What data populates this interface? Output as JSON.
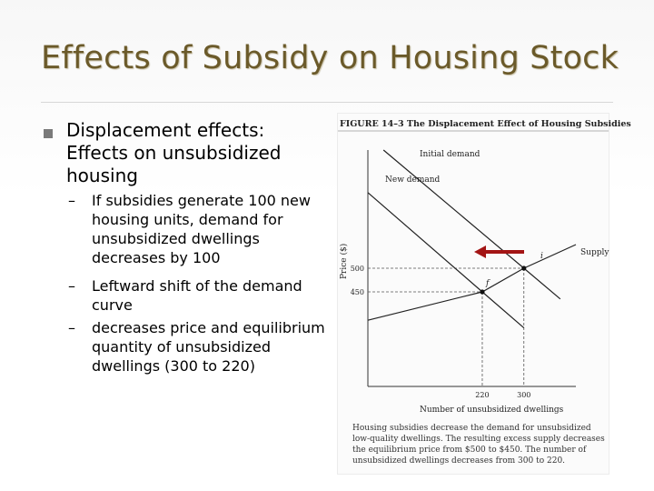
{
  "slide": {
    "title": "Effects of Subsidy on Housing Stock",
    "main_bullet": "Displacement effects: Effects on unsubsidized housing",
    "sub_bullets": [
      "If subsidies generate 100 new housing units, demand for unsubsidized dwellings decreases by 100",
      "Leftward shift of the demand curve",
      " decreases price and equilibrium quantity of unsubsidized dwellings (300 to 220)"
    ],
    "bullet_icon": "square-bullet-icon",
    "dash": "–"
  },
  "figure": {
    "heading": "FIGURE 14–3  The Displacement Effect of Housing Subsidies",
    "y_axis_label": "Price ($)",
    "x_axis_label": "Number of unsubsidized dwellings",
    "curve_labels": {
      "initial_demand": "Initial demand",
      "new_demand": "New demand",
      "supply": "Supply"
    },
    "point_labels": {
      "i": "i",
      "f": "f"
    },
    "caption": "Housing subsidies decrease the demand for unsubsidized low-quality dwellings. The resulting excess supply decreases the equilibrium price from $500 to $450. The number of unsubsidized dwellings decreases from 300 to 220.",
    "arrow_color": "#a31515",
    "shift_arrow_icon": "left-arrow-icon"
  },
  "chart_data": {
    "type": "line",
    "title": "The Displacement Effect of Housing Subsidies",
    "xlabel": "Number of unsubsidized dwellings",
    "ylabel": "Price ($)",
    "xlim": [
      0,
      400
    ],
    "ylim": [
      250,
      750
    ],
    "x_ticks": [
      220,
      300
    ],
    "y_ticks": [
      450,
      500
    ],
    "series": [
      {
        "name": "Initial demand",
        "x": [
          30,
          300,
          370
        ],
        "y": [
          750,
          500,
          435
        ]
      },
      {
        "name": "New demand",
        "x": [
          0,
          220,
          300
        ],
        "y": [
          660,
          450,
          374
        ]
      },
      {
        "name": "Supply",
        "x": [
          0,
          220,
          300,
          400
        ],
        "y": [
          390,
          450,
          500,
          550
        ]
      }
    ],
    "points": [
      {
        "label": "i",
        "x": 300,
        "y": 500
      },
      {
        "label": "f",
        "x": 220,
        "y": 450
      }
    ]
  }
}
